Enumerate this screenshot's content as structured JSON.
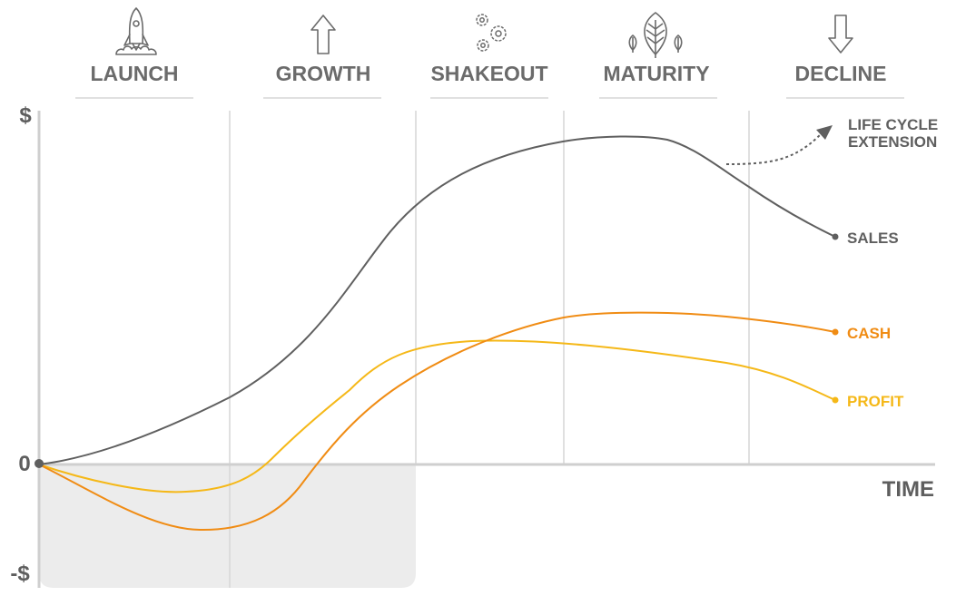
{
  "stages": [
    {
      "label": "LAUNCH",
      "icon": "rocket-icon"
    },
    {
      "label": "GROWTH",
      "icon": "arrow-up-icon"
    },
    {
      "label": "SHAKEOUT",
      "icon": "gears-icon"
    },
    {
      "label": "MATURITY",
      "icon": "leaf-icon"
    },
    {
      "label": "DECLINE",
      "icon": "arrow-down-icon"
    }
  ],
  "axes": {
    "y_top_label": "$",
    "y_zero_label": "0",
    "y_bottom_label": "-$",
    "x_label": "TIME"
  },
  "annotation": {
    "line1": "LIFE CYCLE",
    "line2": "EXTENSION"
  },
  "series": [
    {
      "name": "SALES",
      "color": "#5f5f5f"
    },
    {
      "name": "CASH",
      "color": "#f08c14"
    },
    {
      "name": "PROFIT",
      "color": "#f5b818"
    }
  ],
  "colors": {
    "grid": "#d6d6d6",
    "axis": "#cfcfcf",
    "negative_region": "#ececec",
    "icon": "#6b6b6b"
  }
}
